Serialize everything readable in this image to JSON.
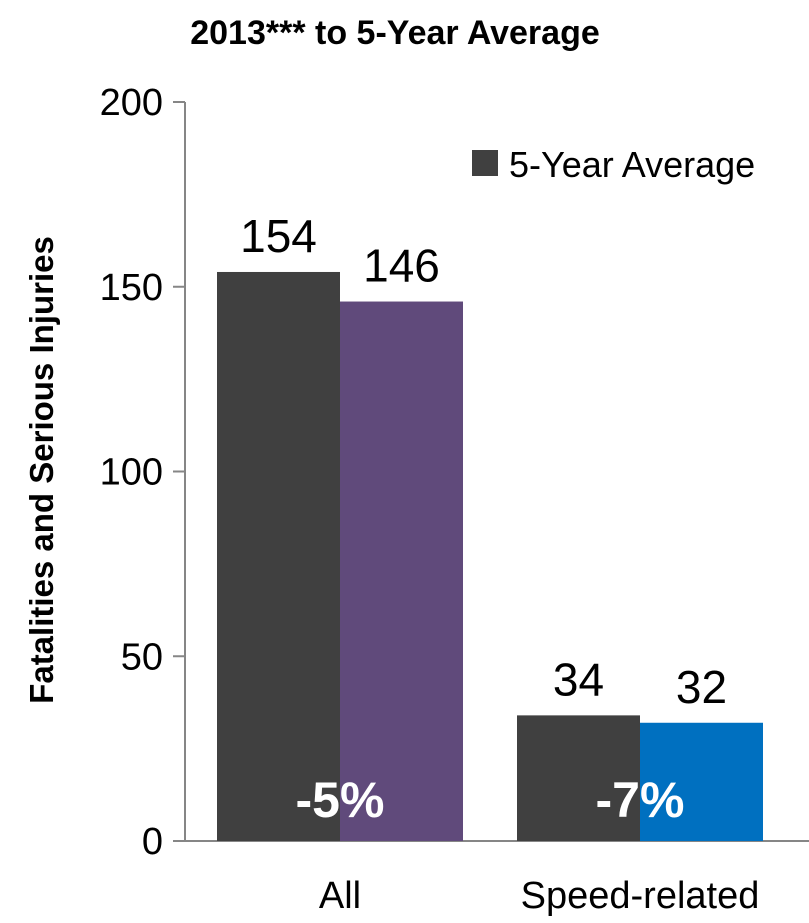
{
  "chart_data": {
    "type": "bar",
    "title": "2013*** to 5-Year Average",
    "ylabel": "Fatalities and Serious Injuries",
    "xlabel": "",
    "ylim": [
      0,
      200
    ],
    "yticks": [
      0,
      50,
      100,
      150,
      200
    ],
    "categories": [
      "All",
      "Speed-related"
    ],
    "series": [
      {
        "name": "5-Year Average",
        "values": [
          154,
          34
        ],
        "colors": [
          "#404040",
          "#404040"
        ]
      },
      {
        "values": [
          146,
          32
        ],
        "colors": [
          "#604A7B",
          "#0070C0"
        ]
      }
    ],
    "data_labels": [
      [
        "154",
        "34"
      ],
      [
        "146",
        "32"
      ]
    ],
    "change_labels": [
      "-5%",
      "-7%"
    ],
    "legend": {
      "position": "top-right",
      "entries": [
        "5-Year Average"
      ]
    },
    "grid": false
  }
}
